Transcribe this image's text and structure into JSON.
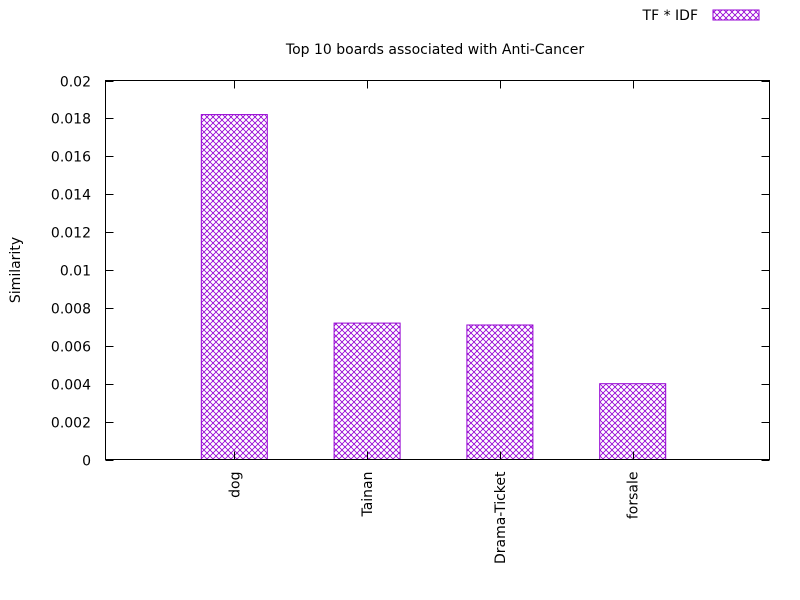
{
  "chart_data": {
    "type": "bar",
    "title": "Top 10 boards associated with Anti-Cancer",
    "xlabel": "",
    "ylabel": "Similarity",
    "categories": [
      "dog",
      "Tainan",
      "Drama-Ticket",
      "forsale"
    ],
    "series": [
      {
        "name": "TF * IDF",
        "values": [
          0.0182,
          0.0072,
          0.0071,
          0.004
        ]
      }
    ],
    "ylim": [
      0,
      0.02
    ],
    "yticks": [
      "0",
      "0.002",
      "0.004",
      "0.006",
      "0.008",
      "0.01",
      "0.012",
      "0.014",
      "0.016",
      "0.018",
      "0.02"
    ],
    "grid": false,
    "legend_position": "top-right",
    "bar_fill": "crosshatch",
    "bar_color": "#9400d3"
  }
}
